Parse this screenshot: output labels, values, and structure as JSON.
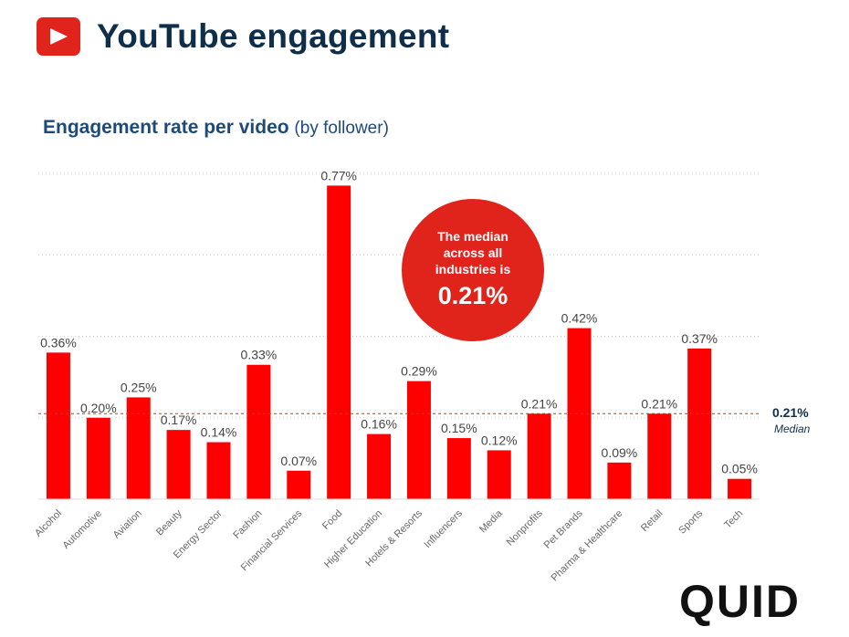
{
  "header": {
    "title": "YouTube engagement",
    "icon": "youtube-play-icon",
    "icon_color": "#e0241b"
  },
  "subtitle": {
    "main": "Engagement rate per video",
    "sub": "(by follower)"
  },
  "callout": {
    "text": "The median across all industries is",
    "value": "0.21%"
  },
  "median": {
    "value_label": "0.21%",
    "label": "Median"
  },
  "logo": "QUID",
  "colors": {
    "bar": "#ff0000",
    "accent": "#e0241b",
    "title": "#0f2e4a",
    "median_line": "#c0392b"
  },
  "chart_data": {
    "type": "bar",
    "title": "Engagement rate per video (by follower)",
    "xlabel": "",
    "ylabel": "",
    "categories": [
      "Alcohol",
      "Automotive",
      "Aviation",
      "Beauty",
      "Energy Sector",
      "Fashion",
      "Financial Services",
      "Food",
      "Higher Education",
      "Hotels & Resorts",
      "Influencers",
      "Media",
      "Nonprofits",
      "Pet Brands",
      "Pharma & Healthcare",
      "Retail",
      "Sports",
      "Tech"
    ],
    "values": [
      0.36,
      0.2,
      0.25,
      0.17,
      0.14,
      0.33,
      0.07,
      0.77,
      0.16,
      0.29,
      0.15,
      0.12,
      0.21,
      0.42,
      0.09,
      0.21,
      0.37,
      0.05
    ],
    "value_labels": [
      "0.36%",
      "0.20%",
      "0.25%",
      "0.17%",
      "0.14%",
      "0.33%",
      "0.07%",
      "0.77%",
      "0.16%",
      "0.29%",
      "0.15%",
      "0.12%",
      "0.21%",
      "0.42%",
      "0.09%",
      "0.21%",
      "0.37%",
      "0.05%"
    ],
    "median": 0.21,
    "ylim": [
      0,
      0.8
    ],
    "grid": true,
    "legend": "none"
  }
}
